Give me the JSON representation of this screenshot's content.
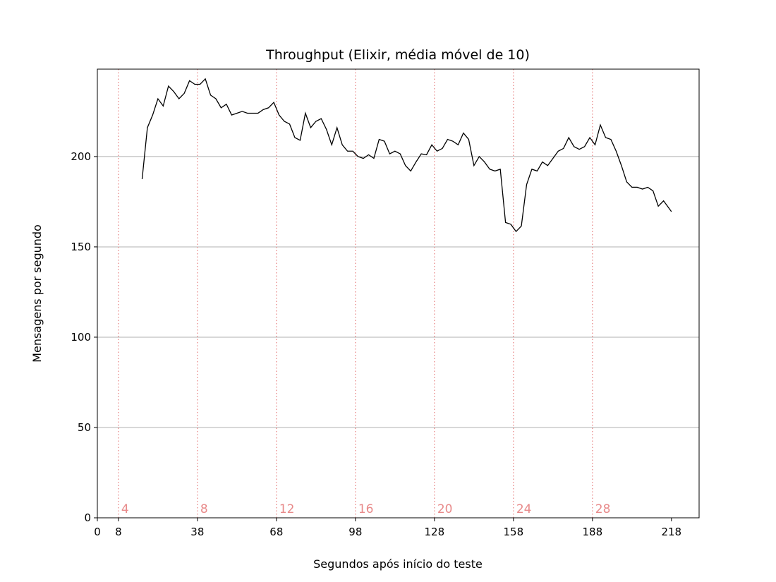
{
  "chart_data": {
    "type": "line",
    "title": "Throughput (Elixir, média móvel de 10)",
    "xlabel": "Segundos após início do teste",
    "ylabel": "Mensagens por segundo",
    "x": [
      17,
      19,
      21,
      23,
      25,
      27,
      29,
      31,
      33,
      35,
      37,
      39,
      41,
      43,
      45,
      47,
      49,
      51,
      53,
      55,
      57,
      59,
      61,
      63,
      65,
      67,
      69,
      71,
      73,
      75,
      77,
      79,
      81,
      83,
      85,
      87,
      89,
      91,
      93,
      95,
      97,
      99,
      101,
      103,
      105,
      107,
      109,
      111,
      113,
      115,
      117,
      119,
      121,
      123,
      125,
      127,
      129,
      131,
      133,
      135,
      137,
      139,
      141,
      143,
      145,
      147,
      149,
      151,
      153,
      155,
      157,
      159,
      161,
      163,
      165,
      167,
      169,
      171,
      173,
      175,
      177,
      179,
      181,
      183,
      185,
      187,
      189,
      191,
      193,
      195,
      197,
      199,
      201,
      203,
      205,
      207,
      209,
      211,
      213,
      215,
      217,
      218
    ],
    "series": [
      {
        "name": "Throughput",
        "color": "#000000",
        "values": [
          187.5,
          216,
          223,
          232,
          228,
          239,
          236,
          232,
          235,
          242,
          240,
          240,
          243,
          234,
          232,
          227,
          229,
          223,
          224,
          225,
          224,
          224,
          224,
          226,
          227,
          230,
          223,
          219.5,
          218,
          210.5,
          209,
          224,
          216,
          219.5,
          221,
          215,
          206.5,
          216,
          206.5,
          203,
          203,
          200,
          199,
          201,
          199,
          209.5,
          208.5,
          201.5,
          203,
          201.5,
          195,
          192,
          197,
          201.5,
          201,
          206.5,
          203,
          204.5,
          209.5,
          208.5,
          206.5,
          213,
          209.5,
          195,
          200,
          197,
          193,
          192,
          193,
          163.5,
          162.5,
          158.5,
          161.5,
          184.5,
          193,
          192,
          197,
          195,
          199,
          203,
          204.5,
          210.5,
          205.5,
          204,
          205.5,
          210.5,
          206.5,
          217.5,
          210.5,
          209.5,
          203,
          195,
          186,
          183,
          183,
          182,
          183,
          181,
          172.5,
          175.5,
          171.5,
          169.5
        ]
      }
    ],
    "xlim": [
      0,
      228.5
    ],
    "ylim": [
      0,
      248.4
    ],
    "xticks": [
      0,
      8,
      38,
      68,
      98,
      128,
      158,
      188,
      218
    ],
    "yticks": [
      0,
      50,
      100,
      150,
      200
    ],
    "grid": "y",
    "markers": {
      "color": "#e88a8a",
      "x": [
        8,
        38,
        68,
        98,
        128,
        158,
        188
      ],
      "labels": [
        4,
        8,
        12,
        16,
        20,
        24,
        28
      ]
    }
  }
}
